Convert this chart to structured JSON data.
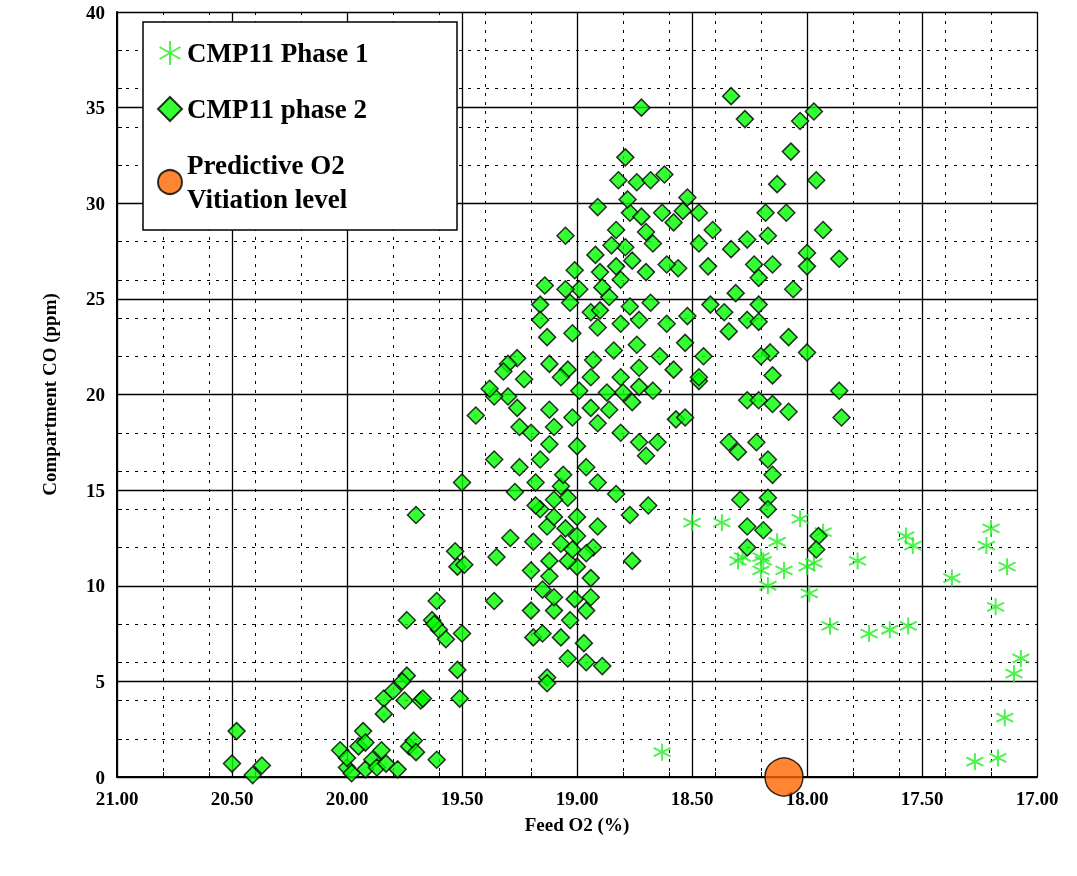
{
  "chart_data": {
    "type": "scatter",
    "xlabel": "Feed O2 (%)",
    "ylabel": "Compartment CO (ppm)",
    "xlim": [
      21,
      17
    ],
    "xticks": [
      {
        "value": 21,
        "label": "21.00"
      },
      {
        "value": 20.5,
        "label": "20.50"
      },
      {
        "value": 20,
        "label": "20.00"
      },
      {
        "value": 19.5,
        "label": "19.50"
      },
      {
        "value": 19,
        "label": "19.00"
      },
      {
        "value": 18.5,
        "label": "18.50"
      },
      {
        "value": 18,
        "label": "18.00"
      },
      {
        "value": 17.5,
        "label": "17.50"
      },
      {
        "value": 17,
        "label": "17.00"
      }
    ],
    "ylim": [
      0,
      40
    ],
    "yticks": [
      0,
      5,
      10,
      15,
      20,
      25,
      30,
      35,
      40
    ],
    "grid": true,
    "legend": "top left",
    "series": [
      {
        "name": "CMP11 Phase 1",
        "color": "#22ee22",
        "marker": "cross",
        "x": [
          18.63,
          18.5,
          18.37,
          18.03,
          17.93,
          18.13,
          18.3,
          18.28,
          18.2,
          18.17,
          18.1,
          18.0,
          17.97,
          17.99,
          17.78,
          17.9,
          17.73,
          17.64,
          17.56,
          17.57,
          17.54,
          17.37,
          17.2,
          17.22,
          17.13,
          17.18,
          17.07,
          17.1,
          17.14,
          17.17,
          17.27,
          18.2,
          18.19
        ],
        "values": [
          1.3,
          13.3,
          13.3,
          13.5,
          12.8,
          12.3,
          11.3,
          11.5,
          10.8,
          10.0,
          10.8,
          11.0,
          11.2,
          9.6,
          11.3,
          7.9,
          7.5,
          7.7,
          7.9,
          12.6,
          12.1,
          10.4,
          13.0,
          12.1,
          11.0,
          8.9,
          6.2,
          5.4,
          3.1,
          1.0,
          0.8,
          11.5,
          11.3
        ]
      },
      {
        "name": "CMP11 phase 2",
        "color": "#00ff00",
        "marker": "diamond",
        "x": [
          20.48,
          20.5,
          20.41,
          20.37,
          20.03,
          20.0,
          20.0,
          19.98,
          19.95,
          19.93,
          19.92,
          19.92,
          19.89,
          19.87,
          19.85,
          19.83,
          19.84,
          19.84,
          19.78,
          19.8,
          19.75,
          19.74,
          19.73,
          19.71,
          19.7,
          19.68,
          19.76,
          19.74,
          19.7,
          19.61,
          19.63,
          19.61,
          19.6,
          19.57,
          19.52,
          19.51,
          19.5,
          19.53,
          19.52,
          19.49,
          19.5,
          19.44,
          19.36,
          19.36,
          19.62,
          19.67,
          19.13,
          19.13,
          19.19,
          19.15,
          19.04,
          18.96,
          18.89,
          18.97,
          19.07,
          19.03,
          19.2,
          19.1,
          18.96,
          19.01,
          19.15,
          18.94,
          19.1,
          18.94,
          19.2,
          19.12,
          19.0,
          19.04,
          19.12,
          18.93,
          19.35,
          19.29,
          19.19,
          19.07,
          19.02,
          18.96,
          19.0,
          19.05,
          18.91,
          19.13,
          19.16,
          19.1,
          19.0,
          19.04,
          19.1,
          19.18,
          18.83,
          18.77,
          18.69,
          18.76,
          19.27,
          19.18,
          19.07,
          18.91,
          19.25,
          19.16,
          19.06,
          18.96,
          19.0,
          19.12,
          19.2,
          19.25,
          19.1,
          19.02,
          18.91,
          18.86,
          18.73,
          18.7,
          18.65,
          18.57,
          18.53,
          18.76,
          19.3,
          19.36,
          19.26,
          19.12,
          18.94,
          18.81,
          18.73,
          18.8,
          18.47,
          18.72,
          18.79,
          18.62,
          18.82,
          18.74,
          18.68,
          18.91,
          18.52,
          18.54,
          18.47,
          18.63,
          18.58,
          19.05,
          18.83,
          18.77,
          18.72,
          18.7,
          18.67,
          18.79,
          18.47,
          18.41,
          18.43,
          18.56,
          18.61,
          18.76,
          18.83,
          18.9,
          18.7,
          19.16,
          19.03,
          18.94,
          18.86,
          18.77,
          18.68,
          18.42,
          18.52,
          18.61,
          18.73,
          18.81,
          18.91,
          19.02,
          19.13,
          18.53,
          18.45,
          18.64,
          18.74,
          18.84,
          18.93,
          19.04,
          19.12,
          19.26,
          19.3,
          19.23,
          19.07,
          18.94,
          18.81,
          18.73,
          18.58,
          18.47,
          18.67,
          18.87,
          18.99,
          18.78,
          18.99,
          18.89,
          18.81,
          19.01,
          18.92,
          18.85,
          19.32,
          19.38,
          19.16,
          19.05,
          19.14,
          18.9,
          18.33,
          18.27,
          17.97,
          18.03,
          18.07,
          18.13,
          17.96,
          18.18,
          18.09,
          17.93,
          18.26,
          18.17,
          18.33,
          18.0,
          17.86,
          18.0,
          18.23,
          18.15,
          18.21,
          18.06,
          18.31,
          18.21,
          18.36,
          18.26,
          18.21,
          18.34,
          18.08,
          18.16,
          18.0,
          18.2,
          18.15,
          17.86,
          18.26,
          18.21,
          18.15,
          18.08,
          17.85,
          18.34,
          18.3,
          18.22,
          18.17,
          18.15,
          18.17,
          18.17,
          18.29,
          18.26,
          18.19,
          18.26,
          17.95,
          17.96
        ],
        "values": [
          2.4,
          0.7,
          0.1,
          0.6,
          1.4,
          0.5,
          1.0,
          0.2,
          1.6,
          2.4,
          1.8,
          0.4,
          0.9,
          0.5,
          1.4,
          0.7,
          4.1,
          3.3,
          0.4,
          4.5,
          4.0,
          5.3,
          1.6,
          1.9,
          1.3,
          4.0,
          5.0,
          8.2,
          13.7,
          0.9,
          8.2,
          9.2,
          7.7,
          7.2,
          5.6,
          4.1,
          7.5,
          11.8,
          11.0,
          11.1,
          15.4,
          18.9,
          16.6,
          9.2,
          8.0,
          4.1,
          5.2,
          4.9,
          7.3,
          7.5,
          6.2,
          6.0,
          5.8,
          7.0,
          7.3,
          8.2,
          8.7,
          8.7,
          8.7,
          9.3,
          9.8,
          9.4,
          9.4,
          10.4,
          10.8,
          10.5,
          11.0,
          11.3,
          11.3,
          12.0,
          11.5,
          12.5,
          12.3,
          12.2,
          11.9,
          11.7,
          12.6,
          13.0,
          13.1,
          13.1,
          14.0,
          13.6,
          13.6,
          14.6,
          14.5,
          14.2,
          14.8,
          13.7,
          14.2,
          11.3,
          14.9,
          15.4,
          15.2,
          15.4,
          16.2,
          16.6,
          15.8,
          16.2,
          17.3,
          17.4,
          18.0,
          18.3,
          18.3,
          18.8,
          18.5,
          19.2,
          17.5,
          16.8,
          17.5,
          18.7,
          18.8,
          19.6,
          19.9,
          19.9,
          19.3,
          19.2,
          19.3,
          18.0,
          20.4,
          20.1,
          20.7,
          35.0,
          32.4,
          31.5,
          31.2,
          31.1,
          31.2,
          29.8,
          30.3,
          29.6,
          29.5,
          29.5,
          29.0,
          28.3,
          28.6,
          29.5,
          29.3,
          28.5,
          27.9,
          27.7,
          27.9,
          28.6,
          26.7,
          26.6,
          26.8,
          27.0,
          26.7,
          26.4,
          26.4,
          24.7,
          24.8,
          24.3,
          25.1,
          24.6,
          24.8,
          24.7,
          24.1,
          23.7,
          23.9,
          23.7,
          23.5,
          23.2,
          23.0,
          22.7,
          22.0,
          22.0,
          22.6,
          22.3,
          21.8,
          21.3,
          21.6,
          21.9,
          21.6,
          20.8,
          20.9,
          20.9,
          20.9,
          21.4,
          21.3,
          20.9,
          20.2,
          20.1,
          20.2,
          30.2,
          25.5,
          25.6,
          26.0,
          26.5,
          27.3,
          27.8,
          21.2,
          20.3,
          23.9,
          25.5,
          25.7,
          24.4,
          35.6,
          34.4,
          34.8,
          34.3,
          32.7,
          31.0,
          31.2,
          29.5,
          29.5,
          28.6,
          28.1,
          28.3,
          27.6,
          27.4,
          27.1,
          26.7,
          26.8,
          26.8,
          26.1,
          25.5,
          25.3,
          24.7,
          24.3,
          23.9,
          23.8,
          23.3,
          23.0,
          22.2,
          22.2,
          22.0,
          21.0,
          20.2,
          19.7,
          19.7,
          19.5,
          19.1,
          18.8,
          17.5,
          17.0,
          17.5,
          16.6,
          15.8,
          14.6,
          14.0,
          14.5,
          13.1,
          12.9,
          12.0,
          12.6,
          11.9
        ]
      },
      {
        "name": "Predictive O2 Vitiation level",
        "color": "#ff6600",
        "marker": "circle",
        "x": [
          18.1
        ],
        "values": [
          0
        ]
      }
    ]
  }
}
